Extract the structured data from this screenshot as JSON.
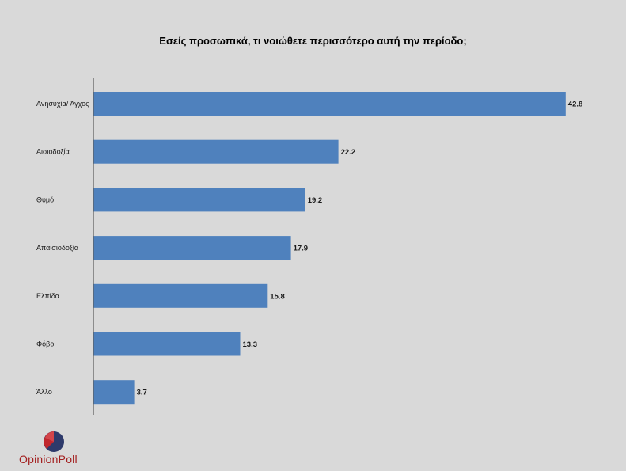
{
  "chart_data": {
    "type": "bar",
    "orientation": "horizontal",
    "title": "Εσείς προσωπικά, τι νοιώθετε περισσότερο αυτή την περίοδο;",
    "categories": [
      "Ανησυχία/ Άγχος",
      "Αισιοδοξία",
      "Θυμό",
      "Απαισιοδοξία",
      "Ελπίδα",
      "Φόβο",
      "Άλλο"
    ],
    "values": [
      42.8,
      22.2,
      19.2,
      17.9,
      15.8,
      13.3,
      3.7
    ],
    "value_labels": [
      "42.8",
      "22.2",
      "19.2",
      "17.9",
      "15.8",
      "13.3",
      "3.7"
    ],
    "xlim": [
      0,
      45
    ],
    "grid": false,
    "legend": "none",
    "bar_color": "#4f81bd"
  },
  "logo": {
    "text": "OpinionPoll",
    "icon": "opinionpoll-logo-icon"
  },
  "colors": {
    "background": "#d9d9d9",
    "axis": "#595959",
    "logo_red": "#c0272d",
    "logo_navy": "#2e3a6b"
  }
}
